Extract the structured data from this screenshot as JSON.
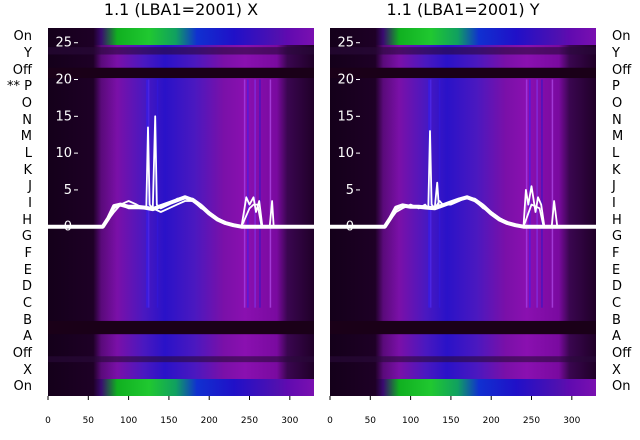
{
  "panels": [
    {
      "title": "1.1 (LBA1=2001) X",
      "id": "x"
    },
    {
      "title": "1.1 (LBA1=2001) Y",
      "id": "y"
    }
  ],
  "row_labels_left": [
    "On",
    "Y",
    "Off",
    "** P",
    "O",
    "N",
    "M",
    "L",
    "K",
    "J",
    "I",
    "H",
    "G",
    "F",
    "E",
    "D",
    "C",
    "B",
    "A",
    "Off",
    "X",
    "On"
  ],
  "row_labels_right": [
    "On",
    "Y",
    "Off",
    "P",
    "O",
    "N",
    "M",
    "L",
    "K",
    "J",
    "I",
    "H",
    "G",
    "F",
    "E",
    "D",
    "C",
    "B",
    "A",
    "Off",
    "X",
    "On"
  ],
  "colors": {
    "line": "#ffffff",
    "dark_band": "#1a0018",
    "purple": "#8a10b0",
    "blue": "#2010c8",
    "green": "#10c020"
  },
  "chart_data": [
    {
      "type": "line",
      "title": "1.1 (LBA1=2001) X",
      "xlim": [
        0,
        330
      ],
      "ylim": [
        -23,
        27
      ],
      "x_ticks": [
        0,
        50,
        100,
        150,
        200,
        250,
        300
      ],
      "y_ticks": [
        0,
        5,
        10,
        15,
        20,
        25
      ],
      "grid": false,
      "series": [
        {
          "x": [
            0,
            60,
            68,
            75,
            82,
            90,
            100,
            110,
            118,
            122,
            124,
            126,
            130,
            140,
            150,
            160,
            170,
            180,
            190,
            200,
            210,
            220,
            230,
            240,
            243,
            246,
            250,
            255,
            258,
            262,
            266,
            270,
            275,
            278,
            280,
            282,
            290,
            300,
            330
          ],
          "y": [
            0,
            0,
            0,
            1,
            2,
            3,
            3.5,
            3,
            2.5,
            2.6,
            13.5,
            3,
            2.5,
            2,
            2.5,
            3,
            3.5,
            3.5,
            2.5,
            2,
            1,
            0.5,
            0.3,
            0,
            2,
            4,
            3,
            4,
            2,
            3.5,
            0,
            0,
            0,
            3.5,
            0,
            0,
            0,
            0,
            0
          ]
        },
        {
          "x": [
            0,
            60,
            68,
            75,
            82,
            90,
            100,
            110,
            120,
            130,
            133,
            135,
            140,
            150,
            160,
            170,
            180,
            190,
            200,
            210,
            220,
            230,
            240,
            250,
            255,
            260,
            265,
            275,
            280,
            330
          ],
          "y": [
            0,
            0,
            0,
            1,
            2.5,
            3,
            2.5,
            2.5,
            2.5,
            2.5,
            15,
            3,
            2.5,
            3,
            3.8,
            4,
            3.8,
            3,
            2,
            1.2,
            0.6,
            0.3,
            0,
            2.5,
            3,
            3,
            0,
            0,
            0,
            0
          ]
        },
        {
          "x": [
            0,
            60,
            68,
            75,
            82,
            90,
            100,
            110,
            120,
            130,
            140,
            150,
            160,
            170,
            180,
            190,
            200,
            210,
            220,
            230,
            240,
            330
          ],
          "y": [
            0,
            0,
            0,
            1.2,
            2.8,
            3,
            2.7,
            2.7,
            2.6,
            2.4,
            2.8,
            3.2,
            3.6,
            4,
            3.6,
            2.8,
            1.8,
            1,
            0.5,
            0.2,
            0,
            0
          ]
        }
      ]
    },
    {
      "type": "line",
      "title": "1.1 (LBA1=2001) Y",
      "xlim": [
        0,
        330
      ],
      "ylim": [
        -23,
        27
      ],
      "x_ticks": [
        0,
        50,
        100,
        150,
        200,
        250,
        300
      ],
      "y_ticks": [
        0,
        5,
        10,
        15,
        20,
        25
      ],
      "grid": false,
      "series": [
        {
          "x": [
            0,
            60,
            68,
            75,
            82,
            90,
            100,
            110,
            118,
            122,
            124,
            126,
            130,
            136,
            140,
            150,
            160,
            170,
            180,
            190,
            200,
            210,
            220,
            230,
            240,
            243,
            246,
            250,
            255,
            258,
            262,
            266,
            270,
            275,
            278,
            282,
            330
          ],
          "y": [
            0,
            0,
            0,
            1,
            2,
            2.5,
            3,
            2.5,
            3,
            2.5,
            13,
            3,
            2.5,
            3.5,
            3,
            3,
            3.5,
            4,
            3.5,
            2.5,
            2,
            1.2,
            0.6,
            0.3,
            0,
            5,
            3,
            5.5,
            2,
            4,
            3,
            0,
            0,
            0,
            3.5,
            0,
            0
          ]
        },
        {
          "x": [
            0,
            60,
            68,
            75,
            82,
            90,
            100,
            110,
            120,
            130,
            133,
            135,
            140,
            150,
            160,
            170,
            180,
            190,
            200,
            210,
            220,
            230,
            240,
            250,
            260,
            265,
            275,
            330
          ],
          "y": [
            0,
            0,
            0,
            1,
            2.3,
            2.8,
            2.6,
            2.6,
            2.6,
            2.6,
            6,
            2.8,
            2.8,
            3.2,
            3.8,
            4,
            3.8,
            3,
            2,
            1.2,
            0.6,
            0.3,
            0,
            3,
            2.5,
            0,
            0,
            0
          ]
        },
        {
          "x": [
            0,
            60,
            68,
            75,
            82,
            90,
            100,
            110,
            120,
            130,
            140,
            150,
            160,
            170,
            180,
            190,
            200,
            210,
            220,
            230,
            240,
            330
          ],
          "y": [
            0,
            0,
            0,
            1.2,
            2.6,
            2.9,
            2.7,
            2.7,
            2.6,
            2.5,
            2.9,
            3.3,
            3.7,
            4,
            3.6,
            2.8,
            1.8,
            1,
            0.5,
            0.2,
            0,
            0
          ]
        }
      ]
    }
  ]
}
